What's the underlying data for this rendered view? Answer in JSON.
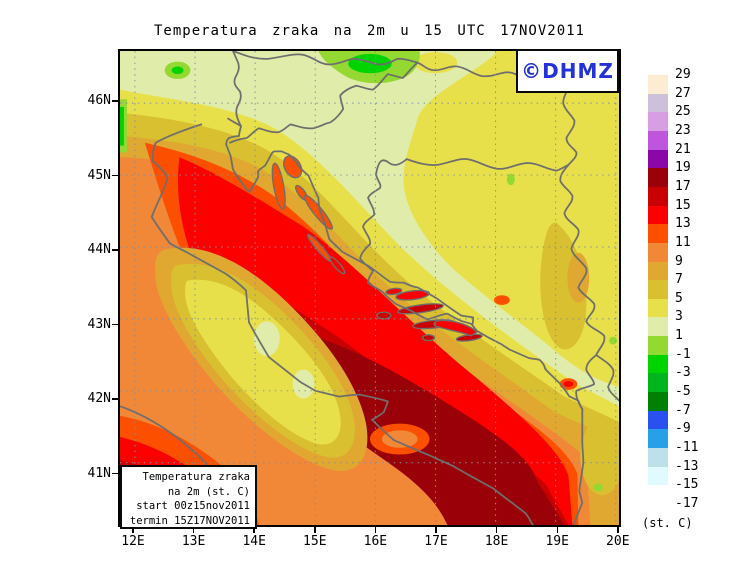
{
  "title": {
    "text": "Temperatura zraka na 2m u 15 UTC 17NOV2011"
  },
  "logo": {
    "text": "©DHMZ",
    "color": "#2331d8"
  },
  "info_box": {
    "lines": [
      "Temperatura zraka",
      "na 2m (st. C)",
      "start 00z15nov2011",
      "termin 15Z17NOV2011"
    ]
  },
  "colorbar": {
    "unit_label": "(st. C)",
    "tick_labels": [
      "29",
      "27",
      "25",
      "23",
      "21",
      "19",
      "17",
      "15",
      "13",
      "11",
      "9",
      "7",
      "5",
      "3",
      "1",
      "-1",
      "-3",
      "-5",
      "-7",
      "-9",
      "-11",
      "-13",
      "-15",
      "-17"
    ],
    "cells": [
      {
        "min": 27,
        "max": 29,
        "color": "#fdebd2"
      },
      {
        "min": 25,
        "max": 27,
        "color": "#cdc1d9"
      },
      {
        "min": 23,
        "max": 25,
        "color": "#d89ee3"
      },
      {
        "min": 21,
        "max": 23,
        "color": "#bf55dd"
      },
      {
        "min": 19,
        "max": 21,
        "color": "#8b08a8"
      },
      {
        "min": 17,
        "max": 19,
        "color": "#9a0008"
      },
      {
        "min": 15,
        "max": 17,
        "color": "#c80000"
      },
      {
        "min": 13,
        "max": 15,
        "color": "#fc0000"
      },
      {
        "min": 11,
        "max": 13,
        "color": "#fc5000"
      },
      {
        "min": 9,
        "max": 11,
        "color": "#f08838"
      },
      {
        "min": 7,
        "max": 9,
        "color": "#e0a830"
      },
      {
        "min": 5,
        "max": 7,
        "color": "#d8c030"
      },
      {
        "min": 3,
        "max": 5,
        "color": "#e8e04a"
      },
      {
        "min": 1,
        "max": 3,
        "color": "#e0edaa"
      },
      {
        "min": -1,
        "max": 1,
        "color": "#94d832"
      },
      {
        "min": -3,
        "max": -1,
        "color": "#00d400"
      },
      {
        "min": -5,
        "max": -3,
        "color": "#00b41e"
      },
      {
        "min": -7,
        "max": -5,
        "color": "#008000"
      },
      {
        "min": -9,
        "max": -7,
        "color": "#2a50f0"
      },
      {
        "min": -11,
        "max": -9,
        "color": "#28a0e8"
      },
      {
        "min": -13,
        "max": -11,
        "color": "#bee0e8"
      },
      {
        "min": -15,
        "max": -13,
        "color": "#e0faff"
      },
      {
        "min": -17,
        "max": -15,
        "color": "#ffffff"
      }
    ]
  },
  "axes": {
    "lon": [
      "12E",
      "13E",
      "14E",
      "15E",
      "16E",
      "17E",
      "18E",
      "19E",
      "20E"
    ],
    "lat": [
      "46N",
      "45N",
      "44N",
      "43N",
      "42N",
      "41N"
    ]
  }
}
